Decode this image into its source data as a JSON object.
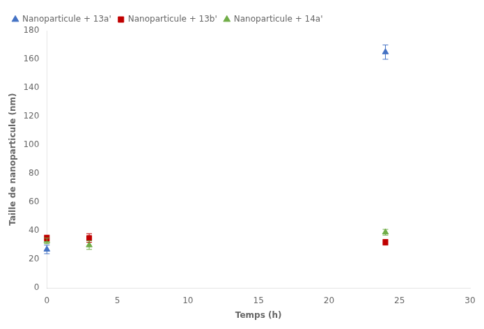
{
  "chart_data": {
    "type": "scatter",
    "xlabel": "Temps (h)",
    "ylabel": "Taille de nanoparticule (nm)",
    "xlim": [
      0,
      30
    ],
    "ylim": [
      0,
      180
    ],
    "xticks": [
      0,
      5,
      10,
      15,
      20,
      25,
      30
    ],
    "yticks": [
      0,
      20,
      40,
      60,
      80,
      100,
      120,
      140,
      160,
      180
    ],
    "grid": false,
    "legend": "upper left",
    "series": [
      {
        "name": "Nanoparticule + 13a'",
        "color": "#4472C4",
        "marker": "triangle",
        "x": [
          0,
          24
        ],
        "values": [
          27,
          165
        ],
        "yerr": [
          3,
          5
        ]
      },
      {
        "name": "Nanoparticule + 13b'",
        "color": "#C00000",
        "marker": "square",
        "x": [
          0,
          3,
          24
        ],
        "values": [
          35,
          35,
          32
        ],
        "yerr": [
          2,
          3,
          2
        ]
      },
      {
        "name": "Nanoparticule + 14a'",
        "color": "#70AD47",
        "marker": "triangle",
        "x": [
          0,
          3,
          24
        ],
        "values": [
          33,
          30,
          39
        ],
        "yerr": [
          2,
          3,
          2
        ]
      }
    ]
  }
}
